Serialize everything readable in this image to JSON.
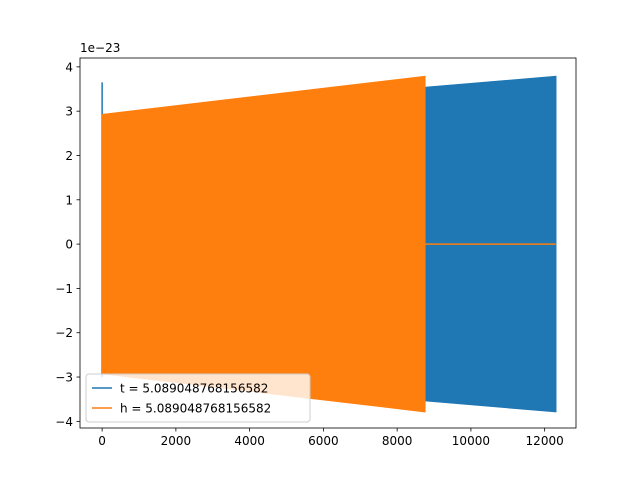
{
  "chart_data": {
    "type": "line",
    "title": "",
    "xlabel": "",
    "ylabel": "",
    "xlim": [
      -600,
      12850
    ],
    "ylim": [
      -4.15,
      4.2
    ],
    "y_scale_label": "1e−23",
    "xticks": [
      0,
      2000,
      4000,
      6000,
      8000,
      10000,
      12000
    ],
    "xtick_labels": [
      "0",
      "2000",
      "4000",
      "6000",
      "8000",
      "10000",
      "12000"
    ],
    "yticks": [
      -4,
      -3,
      -2,
      -1,
      0,
      1,
      2,
      3,
      4
    ],
    "ytick_labels": [
      "−4",
      "−3",
      "−2",
      "−1",
      "0",
      "1",
      "2",
      "3",
      "4"
    ],
    "grid": false,
    "legend_position": "lower-left",
    "series": [
      {
        "name": "t = 5.089048768156582",
        "color": "#1f77b4",
        "envelope": {
          "x": [
            0,
            12300
          ],
          "amplitude": [
            2.92,
            3.78
          ]
        },
        "spike": {
          "x": 0,
          "y": 3.65
        }
      },
      {
        "name": "h = 5.089048768156582",
        "color": "#ff7f0e",
        "envelope": {
          "x": [
            0,
            8750
          ],
          "amplitude": [
            2.92,
            3.78
          ]
        },
        "zero_line": {
          "x": [
            8750,
            12300
          ],
          "y": 0
        }
      }
    ]
  }
}
